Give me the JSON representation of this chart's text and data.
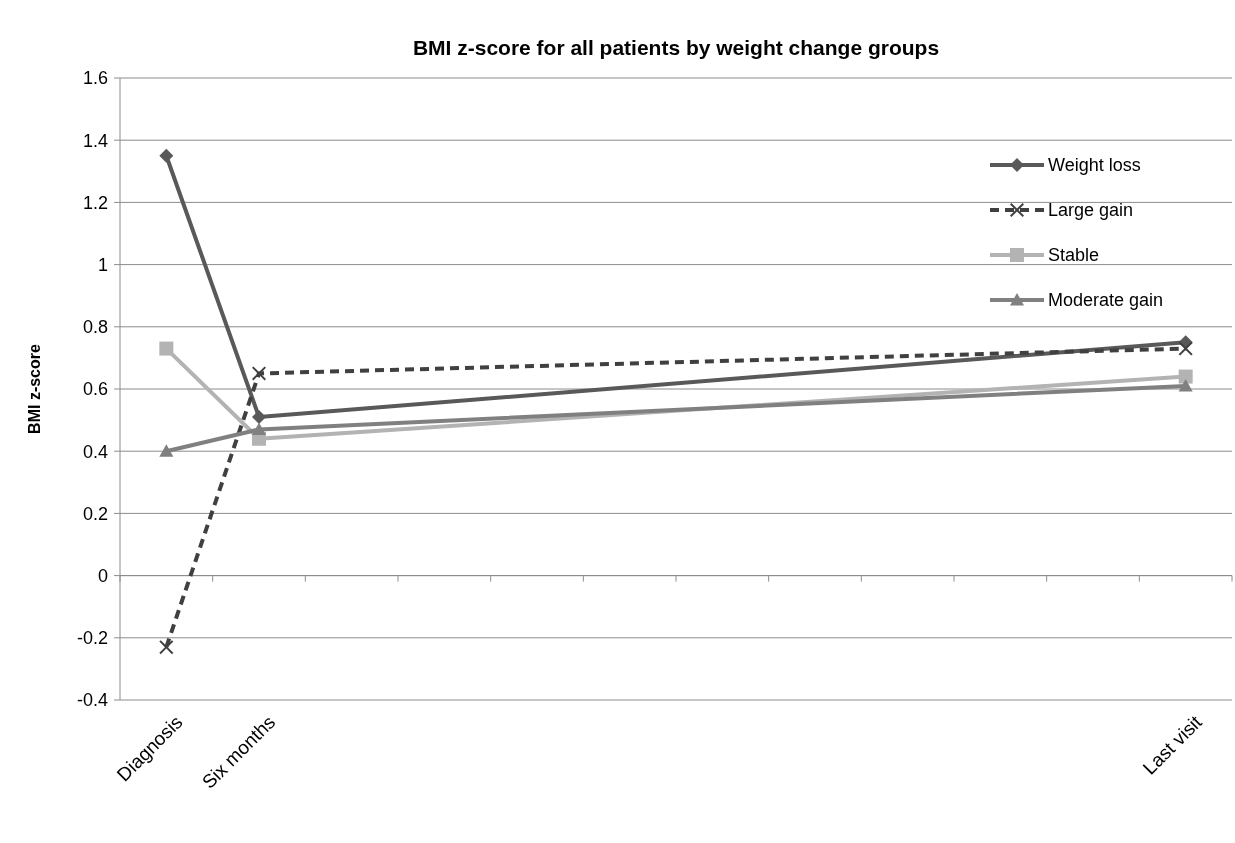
{
  "chart_data": {
    "type": "line",
    "title": "BMI z-score for all patients by weight change groups",
    "ylabel": "BMI z-score",
    "categories": [
      "Diagnosis",
      "Six months",
      null,
      null,
      null,
      null,
      null,
      null,
      null,
      null,
      null,
      "Last visit"
    ],
    "series": [
      {
        "name": "Weight loss",
        "color": "#595959",
        "marker": "diamond",
        "line_style": "solid",
        "values": [
          1.35,
          0.51,
          null,
          null,
          null,
          null,
          null,
          null,
          null,
          null,
          null,
          0.75
        ]
      },
      {
        "name": "Large gain",
        "color": "#404040",
        "marker": "cross",
        "line_style": "dashed",
        "values": [
          -0.23,
          0.65,
          null,
          null,
          null,
          null,
          null,
          null,
          null,
          null,
          null,
          0.73
        ]
      },
      {
        "name": "Stable",
        "color": "#b3b3b3",
        "marker": "square",
        "line_style": "solid",
        "values": [
          0.73,
          0.44,
          null,
          null,
          null,
          null,
          null,
          null,
          null,
          null,
          null,
          0.64
        ]
      },
      {
        "name": "Moderate gain",
        "color": "#808080",
        "marker": "triangle",
        "line_style": "solid",
        "values": [
          0.4,
          0.47,
          null,
          null,
          null,
          null,
          null,
          null,
          null,
          null,
          null,
          0.61
        ]
      }
    ],
    "ylim": [
      -0.4,
      1.6
    ],
    "yticks": [
      {
        "value": -0.4,
        "label": "-0.4"
      },
      {
        "value": -0.2,
        "label": "-0.2"
      },
      0,
      0.2,
      0.4,
      0.6,
      0.8,
      1,
      1.2,
      1.4,
      1.6
    ],
    "grid": "y",
    "legend": "top right"
  }
}
